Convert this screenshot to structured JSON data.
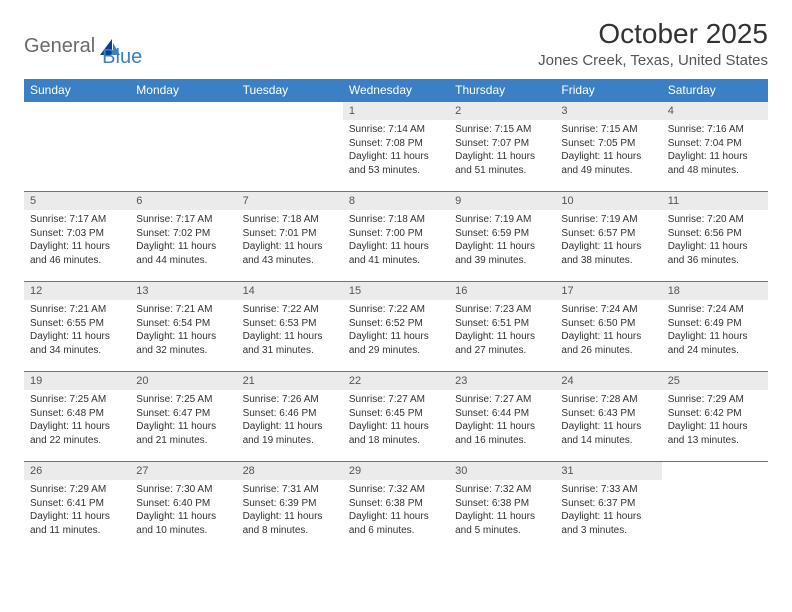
{
  "logo": {
    "part1": "General",
    "part2": "Blue"
  },
  "title": "October 2025",
  "location": "Jones Creek, Texas, United States",
  "colors": {
    "header_bg": "#3b7fc4",
    "header_text": "#ffffff",
    "daynum_bg": "#ebebeb",
    "text": "#333333",
    "logo_gray": "#6a6a6a",
    "logo_blue": "#3b7fc4",
    "row_border": "#3b7fc4"
  },
  "dayNames": [
    "Sunday",
    "Monday",
    "Tuesday",
    "Wednesday",
    "Thursday",
    "Friday",
    "Saturday"
  ],
  "weeks": [
    [
      {
        "n": "",
        "sr": "",
        "ss": "",
        "dl": ""
      },
      {
        "n": "",
        "sr": "",
        "ss": "",
        "dl": ""
      },
      {
        "n": "",
        "sr": "",
        "ss": "",
        "dl": ""
      },
      {
        "n": "1",
        "sr": "Sunrise: 7:14 AM",
        "ss": "Sunset: 7:08 PM",
        "dl": "Daylight: 11 hours and 53 minutes."
      },
      {
        "n": "2",
        "sr": "Sunrise: 7:15 AM",
        "ss": "Sunset: 7:07 PM",
        "dl": "Daylight: 11 hours and 51 minutes."
      },
      {
        "n": "3",
        "sr": "Sunrise: 7:15 AM",
        "ss": "Sunset: 7:05 PM",
        "dl": "Daylight: 11 hours and 49 minutes."
      },
      {
        "n": "4",
        "sr": "Sunrise: 7:16 AM",
        "ss": "Sunset: 7:04 PM",
        "dl": "Daylight: 11 hours and 48 minutes."
      }
    ],
    [
      {
        "n": "5",
        "sr": "Sunrise: 7:17 AM",
        "ss": "Sunset: 7:03 PM",
        "dl": "Daylight: 11 hours and 46 minutes."
      },
      {
        "n": "6",
        "sr": "Sunrise: 7:17 AM",
        "ss": "Sunset: 7:02 PM",
        "dl": "Daylight: 11 hours and 44 minutes."
      },
      {
        "n": "7",
        "sr": "Sunrise: 7:18 AM",
        "ss": "Sunset: 7:01 PM",
        "dl": "Daylight: 11 hours and 43 minutes."
      },
      {
        "n": "8",
        "sr": "Sunrise: 7:18 AM",
        "ss": "Sunset: 7:00 PM",
        "dl": "Daylight: 11 hours and 41 minutes."
      },
      {
        "n": "9",
        "sr": "Sunrise: 7:19 AM",
        "ss": "Sunset: 6:59 PM",
        "dl": "Daylight: 11 hours and 39 minutes."
      },
      {
        "n": "10",
        "sr": "Sunrise: 7:19 AM",
        "ss": "Sunset: 6:57 PM",
        "dl": "Daylight: 11 hours and 38 minutes."
      },
      {
        "n": "11",
        "sr": "Sunrise: 7:20 AM",
        "ss": "Sunset: 6:56 PM",
        "dl": "Daylight: 11 hours and 36 minutes."
      }
    ],
    [
      {
        "n": "12",
        "sr": "Sunrise: 7:21 AM",
        "ss": "Sunset: 6:55 PM",
        "dl": "Daylight: 11 hours and 34 minutes."
      },
      {
        "n": "13",
        "sr": "Sunrise: 7:21 AM",
        "ss": "Sunset: 6:54 PM",
        "dl": "Daylight: 11 hours and 32 minutes."
      },
      {
        "n": "14",
        "sr": "Sunrise: 7:22 AM",
        "ss": "Sunset: 6:53 PM",
        "dl": "Daylight: 11 hours and 31 minutes."
      },
      {
        "n": "15",
        "sr": "Sunrise: 7:22 AM",
        "ss": "Sunset: 6:52 PM",
        "dl": "Daylight: 11 hours and 29 minutes."
      },
      {
        "n": "16",
        "sr": "Sunrise: 7:23 AM",
        "ss": "Sunset: 6:51 PM",
        "dl": "Daylight: 11 hours and 27 minutes."
      },
      {
        "n": "17",
        "sr": "Sunrise: 7:24 AM",
        "ss": "Sunset: 6:50 PM",
        "dl": "Daylight: 11 hours and 26 minutes."
      },
      {
        "n": "18",
        "sr": "Sunrise: 7:24 AM",
        "ss": "Sunset: 6:49 PM",
        "dl": "Daylight: 11 hours and 24 minutes."
      }
    ],
    [
      {
        "n": "19",
        "sr": "Sunrise: 7:25 AM",
        "ss": "Sunset: 6:48 PM",
        "dl": "Daylight: 11 hours and 22 minutes."
      },
      {
        "n": "20",
        "sr": "Sunrise: 7:25 AM",
        "ss": "Sunset: 6:47 PM",
        "dl": "Daylight: 11 hours and 21 minutes."
      },
      {
        "n": "21",
        "sr": "Sunrise: 7:26 AM",
        "ss": "Sunset: 6:46 PM",
        "dl": "Daylight: 11 hours and 19 minutes."
      },
      {
        "n": "22",
        "sr": "Sunrise: 7:27 AM",
        "ss": "Sunset: 6:45 PM",
        "dl": "Daylight: 11 hours and 18 minutes."
      },
      {
        "n": "23",
        "sr": "Sunrise: 7:27 AM",
        "ss": "Sunset: 6:44 PM",
        "dl": "Daylight: 11 hours and 16 minutes."
      },
      {
        "n": "24",
        "sr": "Sunrise: 7:28 AM",
        "ss": "Sunset: 6:43 PM",
        "dl": "Daylight: 11 hours and 14 minutes."
      },
      {
        "n": "25",
        "sr": "Sunrise: 7:29 AM",
        "ss": "Sunset: 6:42 PM",
        "dl": "Daylight: 11 hours and 13 minutes."
      }
    ],
    [
      {
        "n": "26",
        "sr": "Sunrise: 7:29 AM",
        "ss": "Sunset: 6:41 PM",
        "dl": "Daylight: 11 hours and 11 minutes."
      },
      {
        "n": "27",
        "sr": "Sunrise: 7:30 AM",
        "ss": "Sunset: 6:40 PM",
        "dl": "Daylight: 11 hours and 10 minutes."
      },
      {
        "n": "28",
        "sr": "Sunrise: 7:31 AM",
        "ss": "Sunset: 6:39 PM",
        "dl": "Daylight: 11 hours and 8 minutes."
      },
      {
        "n": "29",
        "sr": "Sunrise: 7:32 AM",
        "ss": "Sunset: 6:38 PM",
        "dl": "Daylight: 11 hours and 6 minutes."
      },
      {
        "n": "30",
        "sr": "Sunrise: 7:32 AM",
        "ss": "Sunset: 6:38 PM",
        "dl": "Daylight: 11 hours and 5 minutes."
      },
      {
        "n": "31",
        "sr": "Sunrise: 7:33 AM",
        "ss": "Sunset: 6:37 PM",
        "dl": "Daylight: 11 hours and 3 minutes."
      },
      {
        "n": "",
        "sr": "",
        "ss": "",
        "dl": ""
      }
    ]
  ]
}
